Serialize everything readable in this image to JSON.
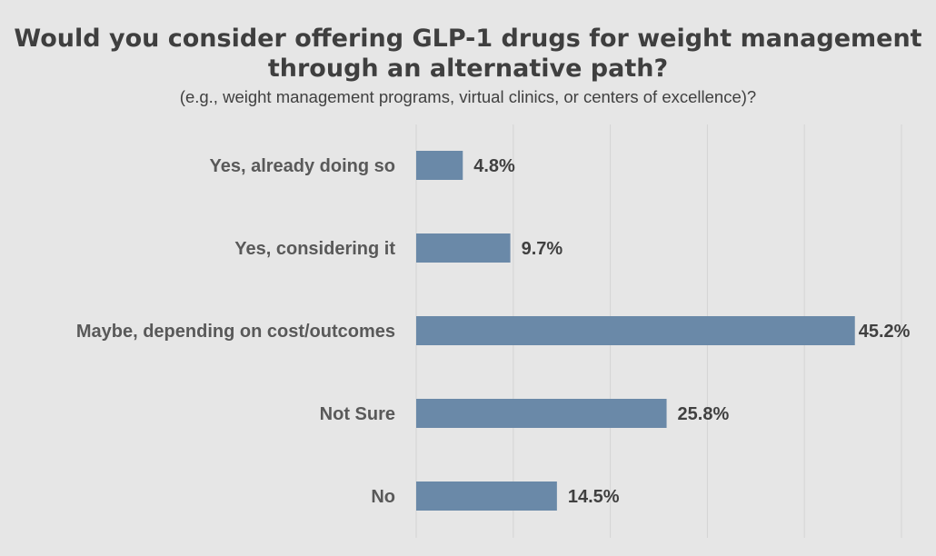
{
  "chart_data": {
    "type": "bar",
    "orientation": "horizontal",
    "title": "Would you consider offering GLP-1 drugs for weight management through an alternative path?",
    "subtitle": "(e.g., weight management programs, virtual clinics, or centers of excellence)?",
    "categories": [
      "Yes, already doing so",
      "Yes, considering it",
      "Maybe, depending on cost/outcomes",
      "Not Sure",
      "No"
    ],
    "values": [
      4.8,
      9.7,
      45.2,
      25.8,
      14.5
    ],
    "value_labels": [
      "4.8%",
      "9.7%",
      "45.2%",
      "25.8%",
      "14.5%"
    ],
    "xlim": [
      0,
      50
    ],
    "xlabel": "",
    "ylabel": "",
    "grid": true,
    "legend": "none",
    "colors": {
      "bar": "#6a89a8",
      "background": "#e6e6e6",
      "gridline": "#d4d4d4"
    }
  }
}
